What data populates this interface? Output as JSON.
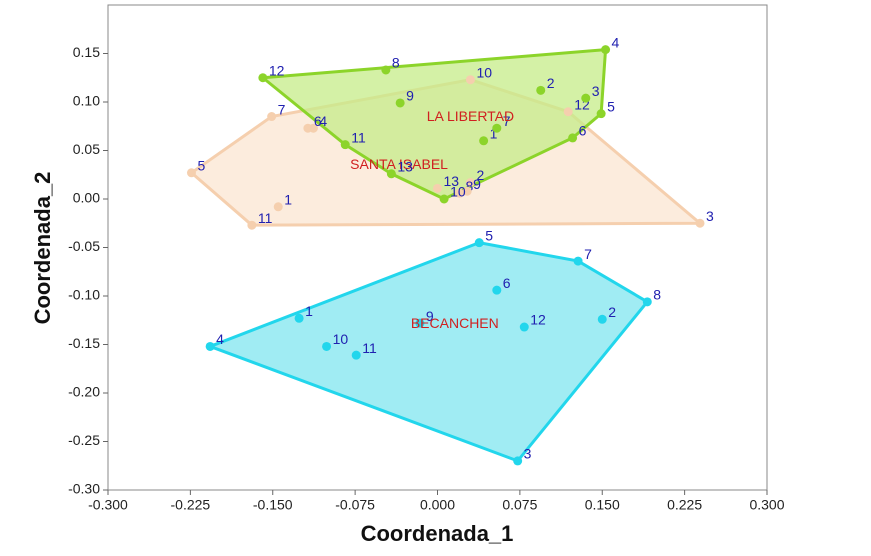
{
  "chart_data": {
    "type": "scatter",
    "x_label": "Coordenada_1",
    "y_label": "Coordenada_2",
    "xlim": [
      -0.3,
      0.3
    ],
    "ylim": [
      -0.3,
      0.2
    ],
    "xticks": [
      {
        "value": -0.3,
        "label": "-0.300"
      },
      {
        "value": -0.225,
        "label": "-0.225"
      },
      {
        "value": -0.15,
        "label": "-0.150"
      },
      {
        "value": -0.075,
        "label": "-0.075"
      },
      {
        "value": 0,
        "label": "0.000"
      },
      {
        "value": 0.075,
        "label": "0.075"
      },
      {
        "value": 0.15,
        "label": "0.150"
      },
      {
        "value": 0.225,
        "label": "0.225"
      },
      {
        "value": 0.3,
        "label": "0.300"
      }
    ],
    "yticks": [
      {
        "value": 0.15,
        "label": "0.15"
      },
      {
        "value": 0.1,
        "label": "0.10"
      },
      {
        "value": 0.05,
        "label": "0.05"
      },
      {
        "value": 0,
        "label": "0.00"
      },
      {
        "value": -0.05,
        "label": "-0.05"
      },
      {
        "value": -0.1,
        "label": "-0.10"
      },
      {
        "value": -0.15,
        "label": "-0.15"
      },
      {
        "value": -0.2,
        "label": "-0.20"
      },
      {
        "value": -0.25,
        "label": "-0.25"
      },
      {
        "value": -0.3,
        "label": "-0.30"
      }
    ],
    "series": [
      {
        "name": "SANTA ISABEL",
        "color": "#f5cfae",
        "fill": "#fbe5d1",
        "x": [
          -0.145,
          0.03,
          0.239,
          -0.113,
          -0.224,
          -0.118,
          -0.151,
          0.02,
          0.027,
          0.03,
          -0.169,
          0.119,
          0.0
        ],
        "y": [
          -0.008,
          0.017,
          -0.025,
          0.073,
          0.027,
          0.073,
          0.085,
          0.006,
          0.008,
          0.123,
          -0.027,
          0.09,
          0.011
        ],
        "point_labels": [
          "1",
          "2",
          "3",
          "4",
          "5",
          "6",
          "7",
          "8",
          "9",
          "10",
          "11",
          "12",
          "13"
        ]
      },
      {
        "name": "LA LIBERTAD",
        "color": "#8cd42a",
        "fill": "#c6ec88",
        "x": [
          0.042,
          0.094,
          0.135,
          0.153,
          0.149,
          0.123,
          0.054,
          -0.047,
          -0.034,
          0.006,
          -0.084,
          -0.159,
          -0.042
        ],
        "y": [
          0.06,
          0.112,
          0.104,
          0.154,
          0.088,
          0.063,
          0.073,
          0.133,
          0.099,
          0.0,
          0.056,
          0.125,
          0.026
        ],
        "point_labels": [
          "1",
          "2",
          "3",
          "4",
          "5",
          "6",
          "7",
          "8",
          "9",
          "10",
          "11",
          "12",
          "13"
        ]
      },
      {
        "name": "BECANCHEN",
        "color": "#22d6ec",
        "fill": "#80e6ef",
        "x": [
          -0.126,
          0.15,
          0.073,
          -0.207,
          0.038,
          0.054,
          0.128,
          0.191,
          -0.016,
          -0.101,
          -0.074,
          0.079
        ],
        "y": [
          -0.123,
          -0.124,
          -0.27,
          -0.152,
          -0.045,
          -0.094,
          -0.064,
          -0.106,
          -0.128,
          -0.152,
          -0.161,
          -0.132
        ],
        "point_labels": [
          "1",
          "2",
          "3",
          "4",
          "5",
          "6",
          "7",
          "8",
          "9",
          "10",
          "11",
          "12"
        ]
      }
    ]
  }
}
